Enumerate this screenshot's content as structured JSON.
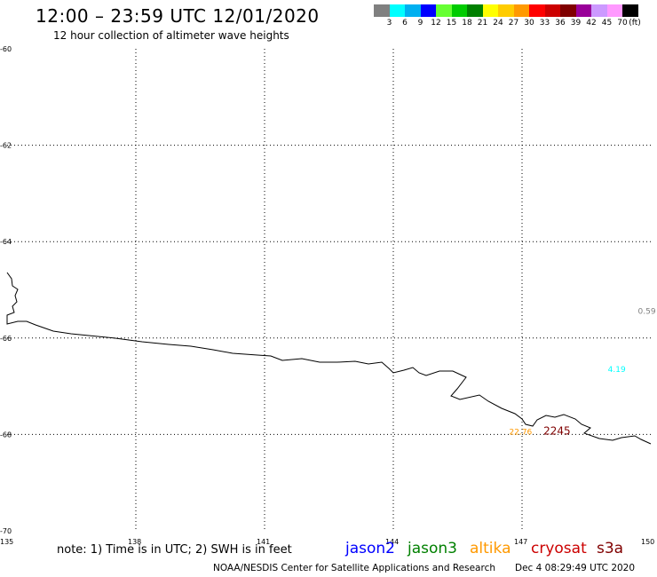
{
  "header": {
    "title": "12:00 – 23:59 UTC 12/01/2020",
    "subtitle": "12 hour collection of altimeter wave heights"
  },
  "colorbar": {
    "colors": [
      "#808080",
      "#00ffff",
      "#00b0f0",
      "#0000ff",
      "#66ff33",
      "#00cc00",
      "#008000",
      "#ffff00",
      "#ffcc00",
      "#ff9900",
      "#ff0000",
      "#cc0000",
      "#800000",
      "#990099",
      "#cc99ff",
      "#ff99ff",
      "#000000"
    ],
    "labels": [
      "3",
      "6",
      "9",
      "12",
      "15",
      "18",
      "21",
      "24",
      "27",
      "30",
      "33",
      "36",
      "39",
      "42",
      "45",
      "70"
    ],
    "unit": "(ft)"
  },
  "map": {
    "lat_labels": [
      "-60",
      "-62",
      "-64",
      "-66",
      "-68",
      "-70"
    ],
    "lon_labels": [
      "135",
      "138",
      "141",
      "144",
      "147",
      "150"
    ],
    "values": [
      {
        "text": "0.59",
        "lon": 149.7,
        "lat": -65.5,
        "color": "#808080"
      },
      {
        "text": "4.19",
        "lon": 149.0,
        "lat": -66.7,
        "color": "#00ffff"
      },
      {
        "text": "22.76",
        "lon": 146.7,
        "lat": -68.0,
        "color": "#ff9900"
      },
      {
        "text": "2245",
        "lon": 147.5,
        "lat": -68.0,
        "color": "#800000"
      }
    ]
  },
  "note": "note: 1) Time is in UTC; 2) SWH is in feet",
  "legend": [
    {
      "name": "jason2",
      "color": "#0000ff"
    },
    {
      "name": "jason3",
      "color": "#008000"
    },
    {
      "name": "altika",
      "color": "#ff9900"
    },
    {
      "name": "cryosat",
      "color": "#cc0000"
    },
    {
      "name": "s3a",
      "color": "#800000"
    }
  ],
  "footer": {
    "credit": "NOAA/NESDIS Center for Satellite Applications and Research",
    "timestamp": "Dec  4 08:29:49 UTC 2020"
  }
}
